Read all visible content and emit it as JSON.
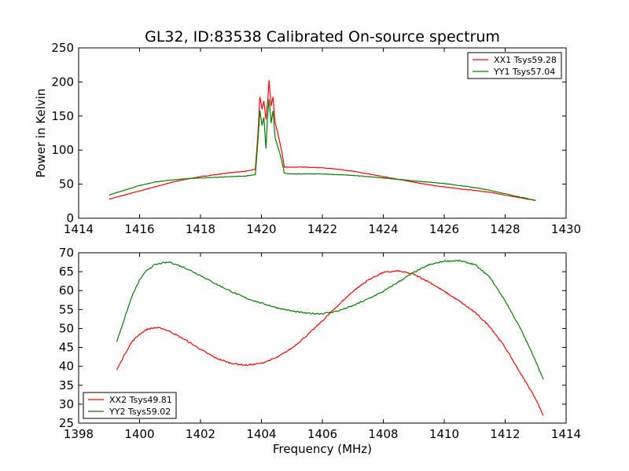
{
  "title": "GL32, ID:83538 Calibrated On-source spectrum",
  "chart_data": [
    {
      "type": "line",
      "title": "GL32, ID:83538 Calibrated On-source spectrum",
      "xlabel": "",
      "ylabel": "Power in Kelvin",
      "xlim": [
        1414,
        1430
      ],
      "ylim": [
        0,
        250
      ],
      "xticks": [
        1414,
        1416,
        1418,
        1420,
        1422,
        1424,
        1426,
        1428,
        1430
      ],
      "yticks": [
        0,
        50,
        100,
        150,
        200,
        250
      ],
      "legend_position": "top-right",
      "grid": false,
      "series": [
        {
          "name": "XX1 Tsys59.28",
          "color": "#ff0000",
          "x": [
            1415.0,
            1415.5,
            1416.0,
            1416.5,
            1417.0,
            1417.5,
            1418.0,
            1418.5,
            1419.0,
            1419.5,
            1419.8,
            1419.88,
            1419.95,
            1420.02,
            1420.08,
            1420.15,
            1420.2,
            1420.25,
            1420.32,
            1420.38,
            1420.45,
            1420.52,
            1420.6,
            1420.68,
            1420.75,
            1421.0,
            1421.5,
            1422.0,
            1422.5,
            1423.0,
            1423.5,
            1424.0,
            1424.5,
            1425.0,
            1425.5,
            1426.0,
            1426.5,
            1427.0,
            1427.5,
            1428.0,
            1428.5,
            1429.0
          ],
          "values": [
            28,
            34,
            40,
            46,
            52,
            57,
            61,
            64,
            67,
            69,
            72,
            120,
            178,
            160,
            172,
            145,
            168,
            202,
            165,
            178,
            140,
            128,
            112,
            95,
            75,
            75,
            75,
            74,
            72,
            69,
            65,
            61,
            57,
            53,
            49,
            46,
            43,
            41,
            38,
            34,
            30,
            26
          ]
        },
        {
          "name": "YY1 Tsys57.04",
          "color": "#008000",
          "x": [
            1415.0,
            1415.5,
            1416.0,
            1416.5,
            1417.0,
            1417.5,
            1418.0,
            1418.5,
            1419.0,
            1419.5,
            1419.8,
            1419.88,
            1419.95,
            1420.02,
            1420.08,
            1420.15,
            1420.2,
            1420.25,
            1420.32,
            1420.38,
            1420.45,
            1420.52,
            1420.6,
            1420.68,
            1420.75,
            1421.0,
            1421.5,
            1422.0,
            1422.5,
            1423.0,
            1423.5,
            1424.0,
            1424.5,
            1425.0,
            1425.5,
            1426.0,
            1426.5,
            1427.0,
            1427.5,
            1428.0,
            1428.5,
            1429.0
          ],
          "values": [
            34,
            41,
            48,
            53,
            56,
            58,
            59,
            60,
            61,
            62,
            64,
            110,
            158,
            136,
            148,
            102,
            148,
            175,
            140,
            158,
            118,
            108,
            96,
            82,
            66,
            65,
            65,
            65,
            64,
            63,
            61,
            59,
            57,
            55,
            53,
            51,
            48,
            45,
            41,
            36,
            31,
            26
          ]
        }
      ]
    },
    {
      "type": "line",
      "title": "",
      "xlabel": "Frequency (MHz)",
      "ylabel": "",
      "xlim": [
        1398,
        1414
      ],
      "ylim": [
        25,
        70
      ],
      "xticks": [
        1398,
        1400,
        1402,
        1404,
        1406,
        1408,
        1410,
        1412,
        1414
      ],
      "yticks": [
        25,
        30,
        35,
        40,
        45,
        50,
        55,
        60,
        65,
        70
      ],
      "legend_position": "bottom-left",
      "grid": false,
      "series": [
        {
          "name": "XX2 Tsys49.81",
          "color": "#ff0000",
          "x": [
            1399.25,
            1399.5,
            1399.75,
            1400.0,
            1400.25,
            1400.5,
            1400.75,
            1401.0,
            1401.5,
            1402.0,
            1402.5,
            1403.0,
            1403.5,
            1404.0,
            1404.5,
            1405.0,
            1405.5,
            1406.0,
            1406.5,
            1407.0,
            1407.5,
            1408.0,
            1408.5,
            1409.0,
            1409.5,
            1410.0,
            1410.5,
            1411.0,
            1411.5,
            1412.0,
            1412.5,
            1413.0,
            1413.25
          ],
          "values": [
            39,
            43,
            46.5,
            48.5,
            49.8,
            50.2,
            50,
            49.2,
            47,
            44.5,
            42.2,
            40.8,
            40.3,
            40.8,
            42.3,
            44.8,
            48.2,
            52,
            56,
            59.8,
            62.8,
            64.8,
            65.2,
            64.3,
            62.3,
            59.8,
            57.2,
            54.3,
            50.5,
            45,
            38.2,
            31.5,
            27
          ]
        },
        {
          "name": "YY2 Tsys59.02",
          "color": "#008000",
          "x": [
            1399.25,
            1399.5,
            1399.75,
            1400.0,
            1400.25,
            1400.5,
            1400.75,
            1401.0,
            1401.5,
            1402.0,
            1402.5,
            1403.0,
            1403.5,
            1404.0,
            1404.5,
            1405.0,
            1405.5,
            1406.0,
            1406.5,
            1407.0,
            1407.5,
            1408.0,
            1408.5,
            1409.0,
            1409.5,
            1410.0,
            1410.5,
            1411.0,
            1411.5,
            1412.0,
            1412.5,
            1413.0,
            1413.25
          ],
          "values": [
            46.5,
            52.5,
            58.5,
            62.8,
            65.5,
            66.8,
            67.3,
            67.5,
            66,
            64,
            61.8,
            59.8,
            58,
            56.7,
            55.5,
            54.6,
            54,
            53.9,
            54.6,
            56,
            57.8,
            59.8,
            62.3,
            64.8,
            66.8,
            67.8,
            67.9,
            66.9,
            63.5,
            57.3,
            50,
            41.5,
            36.5
          ]
        }
      ]
    }
  ]
}
